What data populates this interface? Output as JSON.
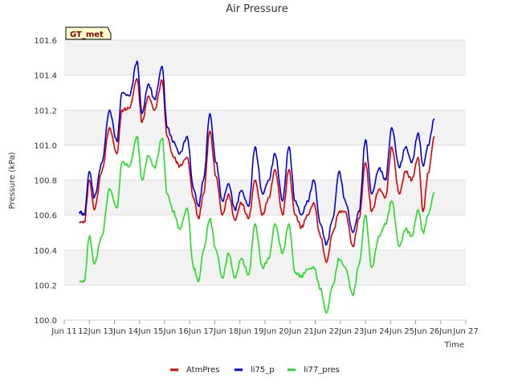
{
  "chart_data": {
    "type": "line",
    "title": "Air Pressure",
    "xlabel": "Time",
    "ylabel": "Pressure (kPa)",
    "ylim": [
      100.0,
      101.6
    ],
    "xlim": [
      11,
      27
    ],
    "yticks": [
      100.0,
      100.2,
      100.4,
      100.6,
      100.8,
      101.0,
      101.2,
      101.4,
      101.6
    ],
    "ytick_labels": [
      "100.0",
      "100.2",
      "100.4",
      "100.6",
      "100.8",
      "101.0",
      "101.2",
      "101.4",
      "101.6"
    ],
    "xticks": [
      11,
      12,
      13,
      14,
      15,
      16,
      17,
      18,
      19,
      20,
      21,
      22,
      23,
      24,
      25,
      26,
      27
    ],
    "xtick_labels": [
      "Jun 11",
      "12Jun",
      "13Jun",
      "14Jun",
      "15Jun",
      "16Jun",
      "17Jun",
      "18Jun",
      "19Jun",
      "20Jun",
      "21Jun",
      "22Jun",
      "23Jun",
      "24Jun",
      "25Jun",
      "26Jun",
      "Jun 27"
    ],
    "grid": true,
    "badge": "GT_met",
    "legend_position": "bottom",
    "series": [
      {
        "name": "AtmPres",
        "color": "#dd0000",
        "x": [
          11.6,
          11.8,
          12.0,
          12.2,
          12.5,
          12.8,
          13.1,
          13.3,
          13.6,
          13.9,
          14.1,
          14.35,
          14.6,
          14.9,
          15.1,
          15.35,
          15.6,
          15.9,
          16.15,
          16.35,
          16.55,
          16.8,
          17.05,
          17.3,
          17.55,
          17.8,
          18.05,
          18.35,
          18.6,
          18.9,
          19.15,
          19.4,
          19.7,
          19.95,
          20.2,
          20.45,
          20.7,
          20.95,
          21.2,
          21.45,
          21.7,
          21.95,
          22.2,
          22.5,
          22.75,
          23.0,
          23.25,
          23.55,
          23.8,
          24.05,
          24.35,
          24.6,
          24.85,
          25.1,
          25.3,
          25.5,
          25.75
        ],
        "y": [
          100.56,
          100.56,
          100.8,
          100.63,
          100.85,
          101.1,
          100.95,
          101.2,
          101.21,
          101.38,
          101.13,
          101.28,
          101.2,
          101.37,
          101.05,
          100.93,
          100.88,
          100.93,
          100.7,
          100.58,
          100.72,
          101.08,
          100.82,
          100.6,
          100.72,
          100.57,
          100.67,
          100.58,
          100.8,
          100.6,
          100.7,
          100.86,
          100.6,
          100.86,
          100.6,
          100.53,
          100.6,
          100.67,
          100.48,
          100.33,
          100.5,
          100.62,
          100.62,
          100.42,
          100.58,
          100.9,
          100.62,
          100.75,
          100.7,
          100.99,
          100.72,
          100.85,
          100.8,
          100.93,
          100.62,
          100.84,
          101.05
        ]
      },
      {
        "name": "li75_p",
        "color": "#0000dd",
        "x": [
          11.6,
          11.8,
          12.0,
          12.2,
          12.5,
          12.8,
          13.1,
          13.3,
          13.6,
          13.9,
          14.1,
          14.35,
          14.6,
          14.9,
          15.1,
          15.35,
          15.6,
          15.9,
          16.15,
          16.35,
          16.55,
          16.8,
          17.05,
          17.3,
          17.55,
          17.8,
          18.05,
          18.35,
          18.6,
          18.9,
          19.15,
          19.4,
          19.7,
          19.95,
          20.2,
          20.45,
          20.7,
          20.95,
          21.2,
          21.45,
          21.7,
          21.95,
          22.2,
          22.5,
          22.75,
          23.0,
          23.25,
          23.55,
          23.8,
          24.05,
          24.35,
          24.6,
          24.85,
          25.1,
          25.3,
          25.5,
          25.75
        ],
        "y": [
          100.62,
          100.6,
          100.85,
          100.7,
          100.9,
          101.2,
          101.02,
          101.3,
          101.28,
          101.48,
          101.18,
          101.35,
          101.26,
          101.45,
          101.1,
          101.02,
          100.95,
          101.05,
          100.75,
          100.65,
          100.8,
          101.18,
          100.9,
          100.68,
          100.78,
          100.63,
          100.74,
          100.65,
          100.99,
          100.72,
          100.8,
          100.95,
          100.68,
          100.99,
          100.68,
          100.6,
          100.68,
          100.8,
          100.55,
          100.43,
          100.58,
          100.85,
          100.68,
          100.5,
          100.62,
          101.03,
          100.72,
          100.87,
          100.8,
          101.1,
          100.87,
          100.99,
          100.9,
          101.07,
          100.88,
          101.0,
          101.15
        ]
      },
      {
        "name": "li77_pres",
        "color": "#22dd22",
        "x": [
          11.6,
          11.8,
          12.0,
          12.2,
          12.5,
          12.8,
          13.1,
          13.3,
          13.6,
          13.9,
          14.1,
          14.35,
          14.6,
          14.9,
          15.1,
          15.35,
          15.6,
          15.9,
          16.15,
          16.35,
          16.55,
          16.8,
          17.05,
          17.3,
          17.55,
          17.8,
          18.05,
          18.35,
          18.6,
          18.9,
          19.15,
          19.4,
          19.7,
          19.95,
          20.2,
          20.45,
          20.7,
          20.95,
          21.2,
          21.45,
          21.7,
          21.95,
          22.2,
          22.5,
          22.75,
          23.0,
          23.25,
          23.55,
          23.8,
          24.05,
          24.35,
          24.6,
          24.85,
          25.1,
          25.3,
          25.5,
          25.75
        ],
        "y": [
          100.22,
          100.22,
          100.48,
          100.32,
          100.48,
          100.75,
          100.64,
          100.9,
          100.88,
          101.05,
          100.8,
          100.94,
          100.87,
          101.04,
          100.72,
          100.62,
          100.52,
          100.64,
          100.3,
          100.22,
          100.4,
          100.58,
          100.4,
          100.24,
          100.38,
          100.24,
          100.35,
          100.26,
          100.55,
          100.3,
          100.35,
          100.55,
          100.38,
          100.55,
          100.27,
          100.25,
          100.29,
          100.3,
          100.18,
          100.04,
          100.2,
          100.35,
          100.3,
          100.14,
          100.32,
          100.6,
          100.3,
          100.48,
          100.55,
          100.68,
          100.42,
          100.52,
          100.48,
          100.63,
          100.5,
          100.6,
          100.73
        ]
      }
    ]
  }
}
